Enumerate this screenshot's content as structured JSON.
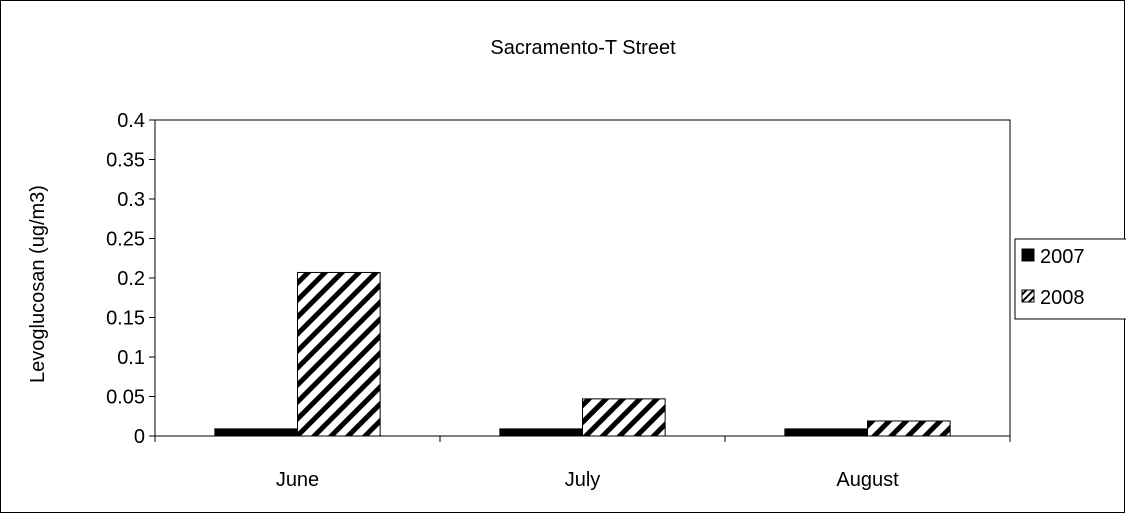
{
  "chart_data": {
    "type": "bar",
    "title": "Sacramento-T Street",
    "xlabel": "",
    "ylabel": "Levoglucosan (ug/m3)",
    "categories": [
      "June",
      "July",
      "August"
    ],
    "series": [
      {
        "name": "2007",
        "values": [
          0.009,
          0.009,
          0.009
        ],
        "fill": "solid",
        "color": "#000000"
      },
      {
        "name": "2008",
        "values": [
          0.207,
          0.047,
          0.019
        ],
        "fill": "diagonal-hatch",
        "color": "#000000"
      }
    ],
    "ylim": [
      0,
      0.4
    ],
    "yticks": [
      "0",
      "0.05",
      "0.1",
      "0.15",
      "0.2",
      "0.25",
      "0.3",
      "0.35",
      "0.4"
    ],
    "grid": false,
    "legend_position": "right"
  }
}
